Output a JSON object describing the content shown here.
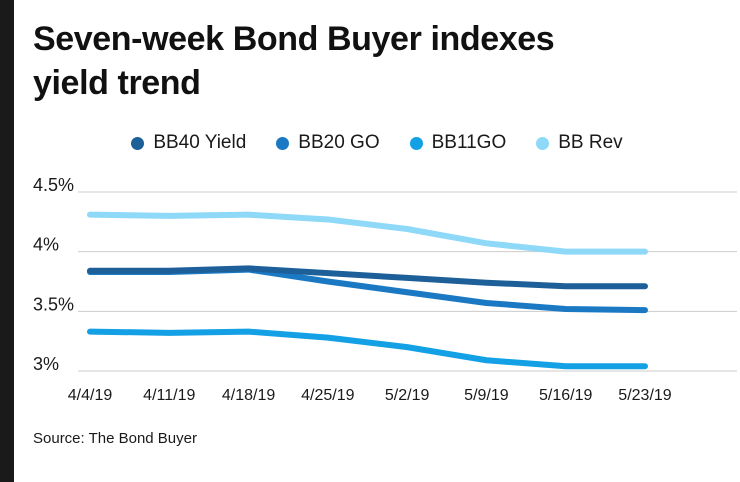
{
  "title_lines": [
    "Seven-week Bond Buyer indexes",
    "yield trend"
  ],
  "source": "Source: The Bond Buyer",
  "colors": {
    "left_bar": "#1a1a1a",
    "grid": "#cccccc",
    "text": "#1a1a1a"
  },
  "chart_data": {
    "type": "line",
    "title": "Seven-week Bond Buyer indexes yield trend",
    "categories": [
      "4/4/19",
      "4/11/19",
      "4/18/19",
      "4/25/19",
      "5/2/19",
      "5/9/19",
      "5/16/19",
      "5/23/19"
    ],
    "series": [
      {
        "name": "BB40 Yield",
        "color": "#1d5f99",
        "values": [
          3.84,
          3.84,
          3.86,
          3.82,
          3.78,
          3.74,
          3.71,
          3.71
        ]
      },
      {
        "name": "BB20 GO",
        "color": "#1b79c4",
        "values": [
          3.83,
          3.83,
          3.85,
          3.75,
          3.66,
          3.57,
          3.52,
          3.51
        ]
      },
      {
        "name": "BB11GO",
        "color": "#13a0e4",
        "values": [
          3.33,
          3.32,
          3.33,
          3.28,
          3.2,
          3.09,
          3.04,
          3.04
        ]
      },
      {
        "name": "BB Rev",
        "color": "#8ed8f8",
        "values": [
          4.31,
          4.3,
          4.31,
          4.27,
          4.19,
          4.07,
          4.0,
          4.0
        ]
      }
    ],
    "y_ticks": [
      4.5,
      4.0,
      3.5,
      3.0
    ],
    "y_tick_labels": [
      "4.5%",
      "4%",
      "3.5%",
      "3%"
    ],
    "ylim": [
      2.9,
      4.6
    ],
    "xlabel": "",
    "ylabel": "",
    "grid": true,
    "legend_position": "top"
  }
}
